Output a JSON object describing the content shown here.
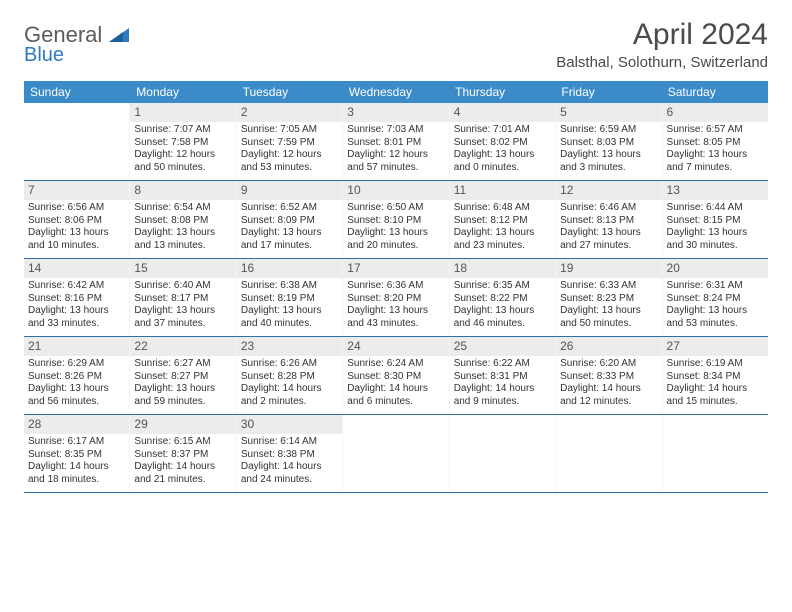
{
  "brand": {
    "general": "General",
    "blue": "Blue"
  },
  "title": "April 2024",
  "location": "Balsthal, Solothurn, Switzerland",
  "colors": {
    "header_bg": "#3b8bc8",
    "header_text": "#ffffff",
    "week_border": "#2f6fa3",
    "daynum_bg": "#ececec",
    "text": "#333333",
    "title_color": "#4a4a4a",
    "logo_gray": "#5c5c5c",
    "logo_blue": "#2f7bbf"
  },
  "daysOfWeek": [
    "Sunday",
    "Monday",
    "Tuesday",
    "Wednesday",
    "Thursday",
    "Friday",
    "Saturday"
  ],
  "weeks": [
    [
      {
        "n": "",
        "sunrise": "",
        "sunset": "",
        "day1": "",
        "day2": ""
      },
      {
        "n": "1",
        "sunrise": "Sunrise: 7:07 AM",
        "sunset": "Sunset: 7:58 PM",
        "day1": "Daylight: 12 hours",
        "day2": "and 50 minutes."
      },
      {
        "n": "2",
        "sunrise": "Sunrise: 7:05 AM",
        "sunset": "Sunset: 7:59 PM",
        "day1": "Daylight: 12 hours",
        "day2": "and 53 minutes."
      },
      {
        "n": "3",
        "sunrise": "Sunrise: 7:03 AM",
        "sunset": "Sunset: 8:01 PM",
        "day1": "Daylight: 12 hours",
        "day2": "and 57 minutes."
      },
      {
        "n": "4",
        "sunrise": "Sunrise: 7:01 AM",
        "sunset": "Sunset: 8:02 PM",
        "day1": "Daylight: 13 hours",
        "day2": "and 0 minutes."
      },
      {
        "n": "5",
        "sunrise": "Sunrise: 6:59 AM",
        "sunset": "Sunset: 8:03 PM",
        "day1": "Daylight: 13 hours",
        "day2": "and 3 minutes."
      },
      {
        "n": "6",
        "sunrise": "Sunrise: 6:57 AM",
        "sunset": "Sunset: 8:05 PM",
        "day1": "Daylight: 13 hours",
        "day2": "and 7 minutes."
      }
    ],
    [
      {
        "n": "7",
        "sunrise": "Sunrise: 6:56 AM",
        "sunset": "Sunset: 8:06 PM",
        "day1": "Daylight: 13 hours",
        "day2": "and 10 minutes."
      },
      {
        "n": "8",
        "sunrise": "Sunrise: 6:54 AM",
        "sunset": "Sunset: 8:08 PM",
        "day1": "Daylight: 13 hours",
        "day2": "and 13 minutes."
      },
      {
        "n": "9",
        "sunrise": "Sunrise: 6:52 AM",
        "sunset": "Sunset: 8:09 PM",
        "day1": "Daylight: 13 hours",
        "day2": "and 17 minutes."
      },
      {
        "n": "10",
        "sunrise": "Sunrise: 6:50 AM",
        "sunset": "Sunset: 8:10 PM",
        "day1": "Daylight: 13 hours",
        "day2": "and 20 minutes."
      },
      {
        "n": "11",
        "sunrise": "Sunrise: 6:48 AM",
        "sunset": "Sunset: 8:12 PM",
        "day1": "Daylight: 13 hours",
        "day2": "and 23 minutes."
      },
      {
        "n": "12",
        "sunrise": "Sunrise: 6:46 AM",
        "sunset": "Sunset: 8:13 PM",
        "day1": "Daylight: 13 hours",
        "day2": "and 27 minutes."
      },
      {
        "n": "13",
        "sunrise": "Sunrise: 6:44 AM",
        "sunset": "Sunset: 8:15 PM",
        "day1": "Daylight: 13 hours",
        "day2": "and 30 minutes."
      }
    ],
    [
      {
        "n": "14",
        "sunrise": "Sunrise: 6:42 AM",
        "sunset": "Sunset: 8:16 PM",
        "day1": "Daylight: 13 hours",
        "day2": "and 33 minutes."
      },
      {
        "n": "15",
        "sunrise": "Sunrise: 6:40 AM",
        "sunset": "Sunset: 8:17 PM",
        "day1": "Daylight: 13 hours",
        "day2": "and 37 minutes."
      },
      {
        "n": "16",
        "sunrise": "Sunrise: 6:38 AM",
        "sunset": "Sunset: 8:19 PM",
        "day1": "Daylight: 13 hours",
        "day2": "and 40 minutes."
      },
      {
        "n": "17",
        "sunrise": "Sunrise: 6:36 AM",
        "sunset": "Sunset: 8:20 PM",
        "day1": "Daylight: 13 hours",
        "day2": "and 43 minutes."
      },
      {
        "n": "18",
        "sunrise": "Sunrise: 6:35 AM",
        "sunset": "Sunset: 8:22 PM",
        "day1": "Daylight: 13 hours",
        "day2": "and 46 minutes."
      },
      {
        "n": "19",
        "sunrise": "Sunrise: 6:33 AM",
        "sunset": "Sunset: 8:23 PM",
        "day1": "Daylight: 13 hours",
        "day2": "and 50 minutes."
      },
      {
        "n": "20",
        "sunrise": "Sunrise: 6:31 AM",
        "sunset": "Sunset: 8:24 PM",
        "day1": "Daylight: 13 hours",
        "day2": "and 53 minutes."
      }
    ],
    [
      {
        "n": "21",
        "sunrise": "Sunrise: 6:29 AM",
        "sunset": "Sunset: 8:26 PM",
        "day1": "Daylight: 13 hours",
        "day2": "and 56 minutes."
      },
      {
        "n": "22",
        "sunrise": "Sunrise: 6:27 AM",
        "sunset": "Sunset: 8:27 PM",
        "day1": "Daylight: 13 hours",
        "day2": "and 59 minutes."
      },
      {
        "n": "23",
        "sunrise": "Sunrise: 6:26 AM",
        "sunset": "Sunset: 8:28 PM",
        "day1": "Daylight: 14 hours",
        "day2": "and 2 minutes."
      },
      {
        "n": "24",
        "sunrise": "Sunrise: 6:24 AM",
        "sunset": "Sunset: 8:30 PM",
        "day1": "Daylight: 14 hours",
        "day2": "and 6 minutes."
      },
      {
        "n": "25",
        "sunrise": "Sunrise: 6:22 AM",
        "sunset": "Sunset: 8:31 PM",
        "day1": "Daylight: 14 hours",
        "day2": "and 9 minutes."
      },
      {
        "n": "26",
        "sunrise": "Sunrise: 6:20 AM",
        "sunset": "Sunset: 8:33 PM",
        "day1": "Daylight: 14 hours",
        "day2": "and 12 minutes."
      },
      {
        "n": "27",
        "sunrise": "Sunrise: 6:19 AM",
        "sunset": "Sunset: 8:34 PM",
        "day1": "Daylight: 14 hours",
        "day2": "and 15 minutes."
      }
    ],
    [
      {
        "n": "28",
        "sunrise": "Sunrise: 6:17 AM",
        "sunset": "Sunset: 8:35 PM",
        "day1": "Daylight: 14 hours",
        "day2": "and 18 minutes."
      },
      {
        "n": "29",
        "sunrise": "Sunrise: 6:15 AM",
        "sunset": "Sunset: 8:37 PM",
        "day1": "Daylight: 14 hours",
        "day2": "and 21 minutes."
      },
      {
        "n": "30",
        "sunrise": "Sunrise: 6:14 AM",
        "sunset": "Sunset: 8:38 PM",
        "day1": "Daylight: 14 hours",
        "day2": "and 24 minutes."
      },
      {
        "n": "",
        "sunrise": "",
        "sunset": "",
        "day1": "",
        "day2": ""
      },
      {
        "n": "",
        "sunrise": "",
        "sunset": "",
        "day1": "",
        "day2": ""
      },
      {
        "n": "",
        "sunrise": "",
        "sunset": "",
        "day1": "",
        "day2": ""
      },
      {
        "n": "",
        "sunrise": "",
        "sunset": "",
        "day1": "",
        "day2": ""
      }
    ]
  ]
}
